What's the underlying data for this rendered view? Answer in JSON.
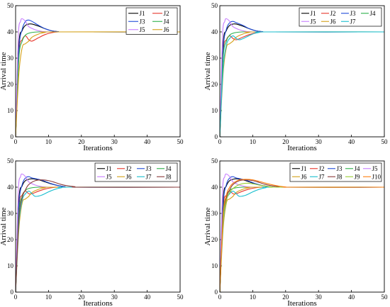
{
  "chart_data": [
    {
      "type": "line",
      "xlabel": "Iterations",
      "ylabel": "Arrival time",
      "xlim": [
        0,
        50
      ],
      "ylim": [
        0,
        50
      ],
      "xticks": [
        "0",
        "10",
        "20",
        "30",
        "40",
        "50"
      ],
      "yticks": [
        "0",
        "10",
        "20",
        "30",
        "40",
        "50"
      ],
      "grid": false,
      "legend": "top-right",
      "legend_columns": 2,
      "series": [
        {
          "name": "J1",
          "color": "#000000",
          "x": [
            0,
            1,
            2,
            3,
            4,
            5,
            7,
            9,
            11,
            13,
            15,
            50
          ],
          "y": [
            0,
            35,
            40.5,
            42.5,
            43,
            43,
            42.2,
            41.2,
            40.4,
            40.1,
            40,
            40
          ]
        },
        {
          "name": "J2",
          "color": "#e8362b",
          "x": [
            0,
            1,
            2,
            3,
            4,
            5,
            7,
            9,
            11,
            13,
            15,
            50
          ],
          "y": [
            0,
            32,
            37,
            38.5,
            37,
            36.5,
            37.8,
            39,
            39.7,
            40,
            40,
            40
          ]
        },
        {
          "name": "J3",
          "color": "#1f4bd8",
          "x": [
            0,
            1,
            2,
            3,
            4,
            5,
            7,
            9,
            11,
            13,
            15,
            50
          ],
          "y": [
            0,
            33,
            41,
            44,
            44.5,
            44,
            42.5,
            41.2,
            40.4,
            40.1,
            40,
            40
          ]
        },
        {
          "name": "J4",
          "color": "#2bb04a",
          "x": [
            0,
            1,
            2,
            3,
            4,
            5,
            7,
            9,
            11,
            13,
            15,
            50
          ],
          "y": [
            0,
            30,
            36.5,
            38.8,
            39.5,
            39.8,
            40,
            40,
            40,
            40,
            40,
            40
          ]
        },
        {
          "name": "J5",
          "color": "#c77dff",
          "x": [
            0,
            0.8,
            1.5,
            2,
            3,
            4,
            6,
            8,
            10,
            12,
            50
          ],
          "y": [
            0,
            38,
            44,
            45,
            44,
            42,
            40.8,
            40.2,
            40,
            40,
            40
          ]
        },
        {
          "name": "J6",
          "color": "#d4a017",
          "x": [
            0,
            1,
            2,
            3,
            4,
            5,
            7,
            9,
            11,
            50
          ],
          "y": [
            0,
            24,
            34,
            35.5,
            36.5,
            38,
            39.2,
            39.8,
            40,
            40
          ]
        }
      ]
    },
    {
      "type": "line",
      "xlabel": "Iterations",
      "ylabel": "Arrival time",
      "xlim": [
        0,
        50
      ],
      "ylim": [
        0,
        50
      ],
      "xticks": [
        "0",
        "10",
        "20",
        "30",
        "40",
        "50"
      ],
      "yticks": [
        "0",
        "10",
        "20",
        "30",
        "40",
        "50"
      ],
      "grid": false,
      "legend": "top-right",
      "legend_columns": 4,
      "series": [
        {
          "name": "J1",
          "color": "#000000",
          "x": [
            0,
            1,
            2,
            3,
            4,
            5,
            7,
            9,
            11,
            13,
            15,
            50
          ],
          "y": [
            0,
            35,
            40.5,
            42.5,
            43,
            43,
            42.2,
            41.2,
            40.4,
            40.1,
            40,
            40
          ]
        },
        {
          "name": "J2",
          "color": "#e8362b",
          "x": [
            0,
            1,
            2,
            3,
            4,
            5,
            7,
            9,
            11,
            13,
            15,
            50
          ],
          "y": [
            0,
            32,
            37,
            38.5,
            37.5,
            37,
            38,
            39,
            39.7,
            40,
            40,
            40
          ]
        },
        {
          "name": "J3",
          "color": "#1f4bd8",
          "x": [
            0,
            1,
            2,
            3,
            4,
            5,
            7,
            9,
            11,
            13,
            15,
            50
          ],
          "y": [
            0,
            33,
            41,
            43.5,
            44,
            43.5,
            42.5,
            41.2,
            40.4,
            40.1,
            40,
            40
          ]
        },
        {
          "name": "J4",
          "color": "#2bb04a",
          "x": [
            0,
            1,
            2,
            3,
            4,
            5,
            7,
            9,
            11,
            13,
            50
          ],
          "y": [
            0,
            30,
            36.5,
            38.8,
            39.5,
            39.8,
            40,
            40,
            40,
            40,
            40
          ]
        },
        {
          "name": "J5",
          "color": "#c77dff",
          "x": [
            0,
            0.8,
            1.5,
            2,
            3,
            4,
            6,
            8,
            10,
            12,
            50
          ],
          "y": [
            0,
            38,
            44,
            45,
            44,
            42,
            40.8,
            40.2,
            40,
            40,
            40
          ]
        },
        {
          "name": "J6",
          "color": "#d4a017",
          "x": [
            0,
            1,
            2,
            3,
            4,
            5,
            7,
            9,
            11,
            50
          ],
          "y": [
            0,
            24,
            34,
            35.5,
            36.5,
            38,
            39.2,
            39.8,
            40,
            40
          ]
        },
        {
          "name": "J7",
          "color": "#17becf",
          "x": [
            0,
            1,
            2,
            3,
            4,
            5,
            6,
            8,
            10,
            12,
            14,
            50
          ],
          "y": [
            0,
            26,
            35,
            37.5,
            38.5,
            37.5,
            37,
            38,
            39.2,
            39.8,
            40,
            40
          ]
        }
      ]
    },
    {
      "type": "line",
      "xlabel": "Iterations",
      "ylabel": "Arrival time",
      "xlim": [
        0,
        50
      ],
      "ylim": [
        0,
        50
      ],
      "xticks": [
        "0",
        "10",
        "20",
        "30",
        "40",
        "50"
      ],
      "yticks": [
        "0",
        "10",
        "20",
        "30",
        "40",
        "50"
      ],
      "grid": false,
      "legend": "top-right",
      "legend_columns": 4,
      "series": [
        {
          "name": "J1",
          "color": "#000000",
          "x": [
            0,
            1,
            2,
            3,
            4,
            5,
            7,
            9,
            11,
            13,
            15,
            17,
            50
          ],
          "y": [
            0,
            35,
            40.5,
            42.5,
            43,
            43.2,
            42.8,
            42,
            41.2,
            40.6,
            40.2,
            40,
            40
          ]
        },
        {
          "name": "J2",
          "color": "#e8362b",
          "x": [
            0,
            1,
            2,
            3,
            4,
            5,
            7,
            9,
            11,
            13,
            15,
            50
          ],
          "y": [
            0,
            32,
            37,
            38.5,
            37.5,
            37.5,
            38.5,
            39.3,
            39.8,
            40,
            40,
            40
          ]
        },
        {
          "name": "J3",
          "color": "#1f4bd8",
          "x": [
            0,
            1,
            2,
            3,
            4,
            5,
            7,
            9,
            11,
            13,
            15,
            17,
            50
          ],
          "y": [
            0,
            33,
            41,
            43.5,
            44,
            43.5,
            43,
            42.2,
            41.3,
            40.6,
            40.2,
            40,
            40
          ]
        },
        {
          "name": "J4",
          "color": "#2bb04a",
          "x": [
            0,
            1,
            2,
            3,
            4,
            5,
            7,
            9,
            11,
            13,
            50
          ],
          "y": [
            0,
            30,
            36.5,
            38.8,
            39.5,
            39.8,
            40,
            40,
            40,
            40,
            40
          ]
        },
        {
          "name": "J5",
          "color": "#c77dff",
          "x": [
            0,
            0.8,
            1.5,
            2,
            3,
            4,
            6,
            8,
            10,
            12,
            50
          ],
          "y": [
            0,
            38,
            44,
            45,
            44,
            42,
            40.8,
            40.2,
            40,
            40,
            40
          ]
        },
        {
          "name": "J6",
          "color": "#d4a017",
          "x": [
            0,
            1,
            2,
            3,
            4,
            5,
            7,
            9,
            11,
            50
          ],
          "y": [
            0,
            24,
            34,
            35.5,
            36.5,
            38,
            39.2,
            39.8,
            40,
            40
          ]
        },
        {
          "name": "J7",
          "color": "#17becf",
          "x": [
            0,
            1,
            2,
            3,
            4,
            5,
            6,
            8,
            10,
            12,
            14,
            16,
            50
          ],
          "y": [
            0,
            26,
            35,
            37.5,
            38.5,
            37.5,
            36.5,
            37,
            38.2,
            39.2,
            39.8,
            40,
            40
          ]
        },
        {
          "name": "J8",
          "color": "#8b3a3a",
          "x": [
            0,
            1,
            2,
            3,
            4,
            6,
            8,
            10,
            12,
            14,
            16,
            18,
            20,
            50
          ],
          "y": [
            0,
            28,
            36,
            39,
            41,
            42.5,
            42.8,
            42.5,
            41.8,
            41,
            40.5,
            40.2,
            40,
            40
          ]
        }
      ]
    },
    {
      "type": "line",
      "xlabel": "Iterations",
      "ylabel": "Arrival time",
      "xlim": [
        0,
        50
      ],
      "ylim": [
        0,
        50
      ],
      "xticks": [
        "0",
        "10",
        "20",
        "30",
        "40",
        "50"
      ],
      "yticks": [
        "0",
        "10",
        "20",
        "30",
        "40",
        "50"
      ],
      "grid": false,
      "legend": "top-right",
      "legend_columns": 5,
      "series": [
        {
          "name": "J1",
          "color": "#000000",
          "x": [
            0,
            1,
            2,
            3,
            4,
            5,
            7,
            9,
            11,
            13,
            15,
            17,
            50
          ],
          "y": [
            0,
            35,
            40.5,
            42.5,
            43,
            43.2,
            42.8,
            42,
            41.2,
            40.6,
            40.2,
            40,
            40
          ]
        },
        {
          "name": "J2",
          "color": "#e8362b",
          "x": [
            0,
            1,
            2,
            3,
            4,
            5,
            7,
            9,
            11,
            13,
            15,
            50
          ],
          "y": [
            0,
            32,
            37,
            38.5,
            37.5,
            37.5,
            38.5,
            39.3,
            39.8,
            40,
            40,
            40
          ]
        },
        {
          "name": "J3",
          "color": "#1f4bd8",
          "x": [
            0,
            1,
            2,
            3,
            4,
            5,
            7,
            9,
            11,
            13,
            15,
            17,
            50
          ],
          "y": [
            0,
            33,
            41,
            43.5,
            44,
            43.5,
            43,
            42.2,
            41.3,
            40.6,
            40.2,
            40,
            40
          ]
        },
        {
          "name": "J4",
          "color": "#2bb04a",
          "x": [
            0,
            1,
            2,
            3,
            4,
            5,
            7,
            9,
            11,
            13,
            50
          ],
          "y": [
            0,
            30,
            36.5,
            38.8,
            39.5,
            39.8,
            40,
            40,
            40,
            40,
            40
          ]
        },
        {
          "name": "J5",
          "color": "#c77dff",
          "x": [
            0,
            0.8,
            1.5,
            2,
            3,
            4,
            6,
            8,
            10,
            12,
            50
          ],
          "y": [
            0,
            38,
            44,
            45,
            44,
            42,
            40.8,
            40.2,
            40,
            40,
            40
          ]
        },
        {
          "name": "J6",
          "color": "#d4a017",
          "x": [
            0,
            1,
            2,
            3,
            4,
            5,
            7,
            9,
            11,
            50
          ],
          "y": [
            0,
            24,
            34,
            35.5,
            36.5,
            38,
            39.2,
            39.8,
            40,
            40
          ]
        },
        {
          "name": "J7",
          "color": "#17becf",
          "x": [
            0,
            1,
            2,
            3,
            4,
            5,
            6,
            8,
            10,
            12,
            14,
            16,
            50
          ],
          "y": [
            0,
            26,
            35,
            37.5,
            38.5,
            37.5,
            36.5,
            37,
            38.2,
            39.2,
            39.8,
            40,
            40
          ]
        },
        {
          "name": "J8",
          "color": "#8b3a3a",
          "x": [
            0,
            1,
            2,
            3,
            4,
            6,
            8,
            10,
            12,
            14,
            16,
            18,
            20,
            50
          ],
          "y": [
            0,
            28,
            36,
            39,
            41,
            42.5,
            42.8,
            42.5,
            41.8,
            41,
            40.5,
            40.2,
            40,
            40
          ]
        },
        {
          "name": "J9",
          "color": "#9acd32",
          "x": [
            0,
            1,
            2,
            3,
            4,
            6,
            8,
            10,
            12,
            14,
            16,
            18,
            50
          ],
          "y": [
            0,
            27,
            35,
            38,
            39.5,
            41,
            41.5,
            41.3,
            40.8,
            40.4,
            40.1,
            40,
            40
          ]
        },
        {
          "name": "J10",
          "color": "#ff7f0e",
          "x": [
            0,
            1,
            2,
            3,
            4,
            6,
            8,
            10,
            12,
            14,
            16,
            18,
            20,
            22,
            50
          ],
          "y": [
            0,
            29,
            37,
            40,
            41.5,
            42.8,
            43,
            42.8,
            42.2,
            41.5,
            40.9,
            40.4,
            40.1,
            40,
            40
          ]
        }
      ]
    }
  ]
}
